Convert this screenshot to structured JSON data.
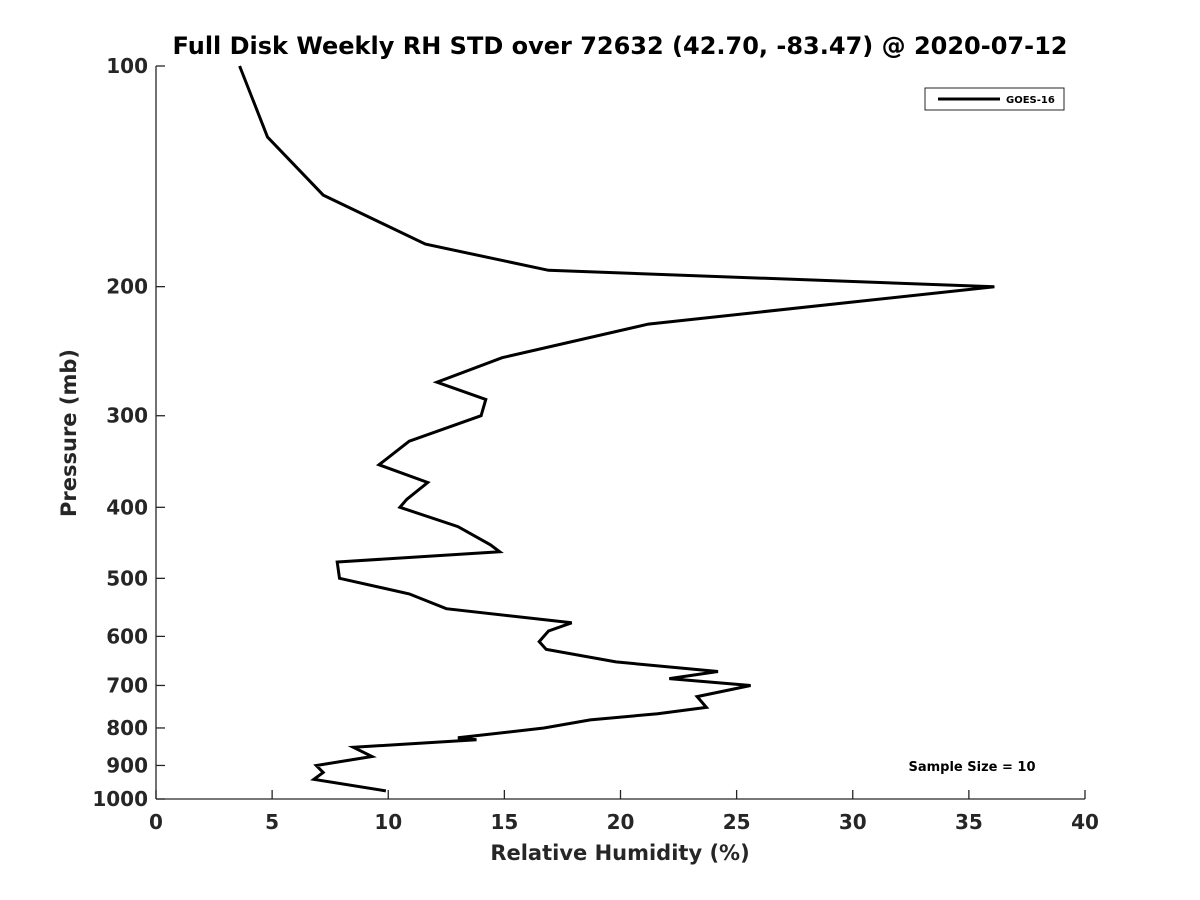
{
  "chart_data": {
    "type": "line",
    "title": "Full Disk Weekly RH STD over 72632 (42.70, -83.47) @ 2020-07-12",
    "xlabel": "Relative Humidity (%)",
    "ylabel": "Pressure (mb)",
    "xlim": [
      0,
      40
    ],
    "ylim": [
      100,
      1000
    ],
    "y_scale": "log",
    "y_reversed": true,
    "grid": false,
    "legend_position": "top-right",
    "x_ticks": [
      "0",
      "5",
      "10",
      "15",
      "20",
      "25",
      "30",
      "35",
      "40"
    ],
    "y_ticks": [
      "100",
      "200",
      "300",
      "400",
      "500",
      "600",
      "700",
      "800",
      "900",
      "1000"
    ],
    "annotation": "Sample Size = 10",
    "series": [
      {
        "name": "GOES-16",
        "color": "#000000",
        "points": [
          [
            3.6,
            100
          ],
          [
            4.8,
            125
          ],
          [
            7.2,
            150
          ],
          [
            11.6,
            175
          ],
          [
            16.9,
            190
          ],
          [
            36.1,
            200
          ],
          [
            21.2,
            225
          ],
          [
            14.9,
            250
          ],
          [
            12.1,
            270
          ],
          [
            14.2,
            285
          ],
          [
            14.0,
            300
          ],
          [
            10.9,
            325
          ],
          [
            9.6,
            350
          ],
          [
            11.7,
            370
          ],
          [
            10.8,
            390
          ],
          [
            10.5,
            400
          ],
          [
            13.0,
            425
          ],
          [
            14.4,
            450
          ],
          [
            14.8,
            460
          ],
          [
            7.8,
            475
          ],
          [
            7.9,
            500
          ],
          [
            10.9,
            525
          ],
          [
            12.5,
            550
          ],
          [
            17.9,
            575
          ],
          [
            16.9,
            590
          ],
          [
            16.5,
            610
          ],
          [
            16.8,
            625
          ],
          [
            19.8,
            650
          ],
          [
            24.2,
            670
          ],
          [
            22.1,
            685
          ],
          [
            25.6,
            700
          ],
          [
            23.3,
            725
          ],
          [
            23.7,
            750
          ],
          [
            21.6,
            765
          ],
          [
            18.7,
            780
          ],
          [
            16.7,
            800
          ],
          [
            13.0,
            825
          ],
          [
            13.8,
            830
          ],
          [
            8.5,
            850
          ],
          [
            9.3,
            875
          ],
          [
            6.9,
            900
          ],
          [
            7.2,
            920
          ],
          [
            6.8,
            940
          ],
          [
            9.9,
            975
          ]
        ]
      }
    ]
  }
}
